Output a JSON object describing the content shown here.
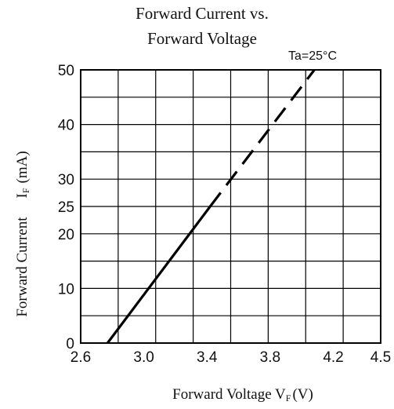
{
  "chart_data": {
    "type": "line",
    "title": "Forward Current vs. Forward Voltage",
    "title_lines": [
      "Forward Current vs.",
      "Forward Voltage"
    ],
    "condition": "Ta=25°C",
    "xlabel": "Forward Voltage V",
    "xlabel_sub": "F",
    "xlabel_unit": "(V)",
    "ylabel": "Forward Current",
    "ylabel_symbol": "I",
    "ylabel_sub": "F",
    "ylabel_unit": "(mA)",
    "xlim": [
      2.6,
      4.5
    ],
    "ylim": [
      0,
      50
    ],
    "x_ticks": [
      {
        "value": 2.6,
        "label": "2.6"
      },
      {
        "value": 3.0,
        "label": "3.0"
      },
      {
        "value": 3.4,
        "label": "3.4"
      },
      {
        "value": 3.8,
        "label": "3.8"
      },
      {
        "value": 4.2,
        "label": "4.2"
      },
      {
        "value": 4.5,
        "label": "4.5"
      }
    ],
    "y_ticks": [
      {
        "value": 0,
        "label": "0"
      },
      {
        "value": 10,
        "label": "10"
      },
      {
        "value": 20,
        "label": "20"
      },
      {
        "value": 25,
        "label": "25"
      },
      {
        "value": 30,
        "label": "30"
      },
      {
        "value": 40,
        "label": "40"
      },
      {
        "value": 50,
        "label": "50"
      }
    ],
    "grid": true,
    "series": [
      {
        "style": "solid",
        "x": [
          2.77,
          3.42
        ],
        "y": [
          0,
          25
        ]
      },
      {
        "style": "dashed",
        "x": [
          3.42,
          4.08
        ],
        "y": [
          25,
          50
        ]
      }
    ],
    "colors": {
      "line": "#000000",
      "grid": "#000000",
      "text": "#111111"
    }
  }
}
